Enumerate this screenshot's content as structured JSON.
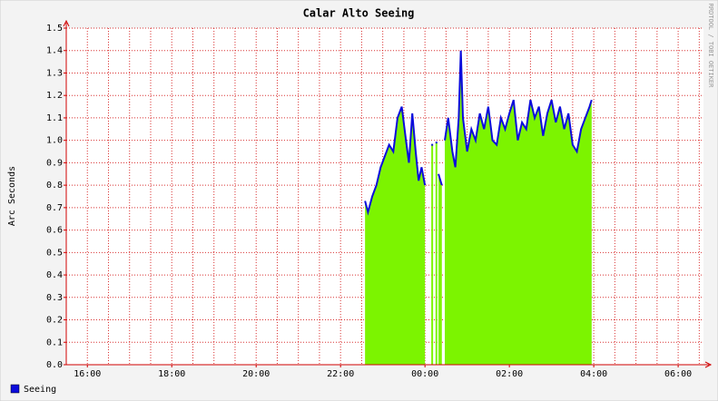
{
  "chart_data": {
    "type": "area-line",
    "title": "Calar Alto Seeing",
    "ylabel": "Arc Seconds",
    "side_text": "RRDTOOL / TOBI OETIKER",
    "x": [
      22.58,
      22.65,
      22.75,
      22.85,
      22.95,
      23.05,
      23.15,
      23.25,
      23.35,
      23.45,
      23.55,
      23.62,
      23.7,
      23.78,
      23.85,
      23.92,
      24.0,
      24.05,
      24.15,
      24.2,
      24.25,
      24.28,
      24.32,
      24.4,
      24.44,
      24.47,
      24.55,
      24.65,
      24.72,
      24.8,
      24.85,
      24.9,
      25.0,
      25.1,
      25.2,
      25.3,
      25.4,
      25.5,
      25.6,
      25.7,
      25.8,
      25.9,
      26.0,
      26.1,
      26.2,
      26.3,
      26.4,
      26.5,
      26.6,
      26.7,
      26.8,
      26.9,
      27.0,
      27.1,
      27.2,
      27.3,
      27.4,
      27.5,
      27.6,
      27.7,
      27.8,
      27.9,
      27.95
    ],
    "series": [
      {
        "name": "Seeing",
        "color": "#0c0cdc",
        "fill": "#7cf400",
        "values": [
          0.73,
          0.68,
          0.75,
          0.8,
          0.88,
          0.93,
          0.98,
          0.95,
          1.1,
          1.15,
          1.0,
          0.9,
          1.12,
          0.95,
          0.82,
          0.88,
          0.8,
          null,
          0.98,
          null,
          0.99,
          null,
          0.85,
          0.8,
          null,
          1.0,
          1.1,
          0.95,
          0.88,
          1.1,
          1.4,
          1.1,
          0.95,
          1.05,
          1.0,
          1.12,
          1.05,
          1.15,
          1.0,
          0.98,
          1.1,
          1.05,
          1.12,
          1.18,
          1.0,
          1.08,
          1.05,
          1.18,
          1.1,
          1.15,
          1.02,
          1.12,
          1.18,
          1.08,
          1.15,
          1.05,
          1.12,
          0.98,
          0.95,
          1.05,
          1.1,
          1.15,
          1.18
        ]
      }
    ],
    "xlim": [
      15.5,
      30.6
    ],
    "xticks": [
      {
        "value": 16,
        "label": "16:00"
      },
      {
        "value": 18,
        "label": "18:00"
      },
      {
        "value": 20,
        "label": "20:00"
      },
      {
        "value": 22,
        "label": "22:00"
      },
      {
        "value": 24,
        "label": "00:00"
      },
      {
        "value": 26,
        "label": "02:00"
      },
      {
        "value": 28,
        "label": "04:00"
      },
      {
        "value": 30,
        "label": "06:00"
      }
    ],
    "xgrid_step": 0.5,
    "ylim": [
      0,
      1.5
    ],
    "yticks": [
      {
        "value": 0,
        "label": "0.0"
      },
      0.1,
      0.2,
      0.3,
      0.4,
      0.5,
      0.6,
      0.7,
      0.8,
      0.9,
      {
        "value": 1,
        "label": "1.0"
      },
      1.1,
      1.2,
      1.3,
      1.4,
      1.5
    ],
    "grid": true,
    "grid_color": "#d00000",
    "legend": "bottom-left"
  }
}
